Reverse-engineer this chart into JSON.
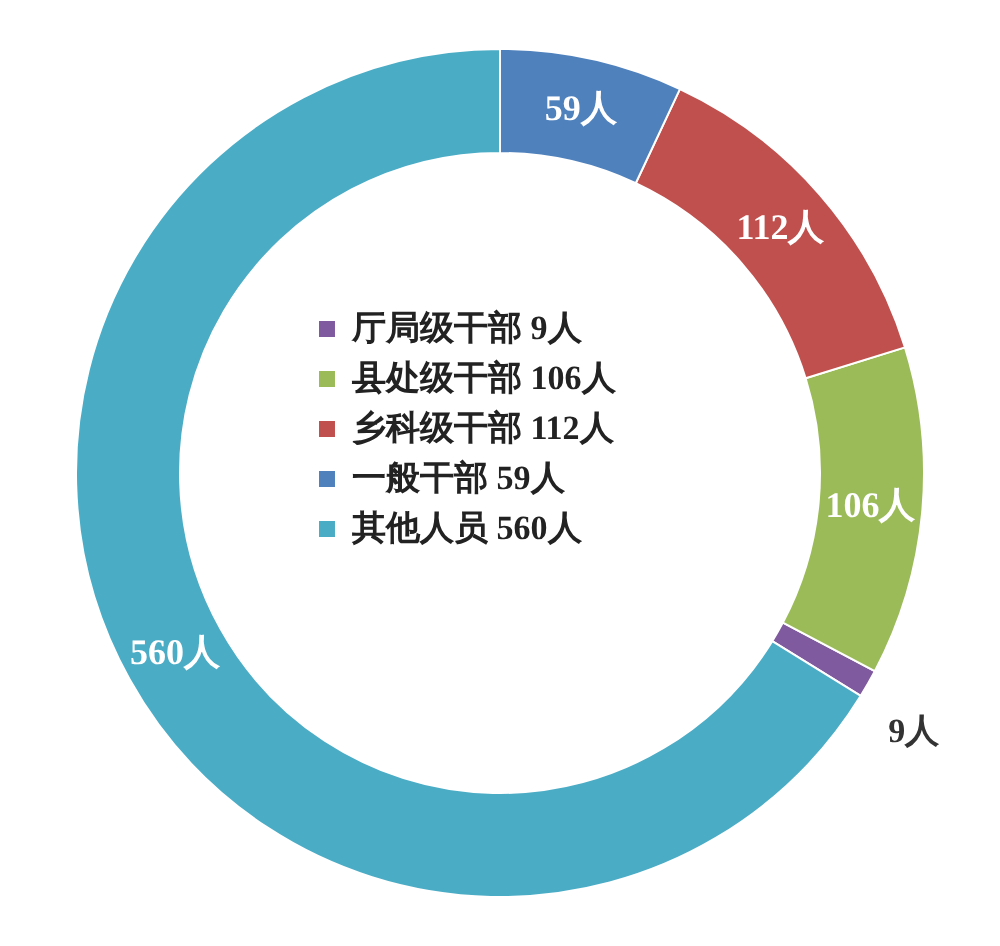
{
  "chart_data": {
    "type": "donut",
    "categories": [
      "厅局级干部",
      "县处级干部",
      "乡科级干部",
      "一般干部",
      "其他人员"
    ],
    "values": [
      9,
      106,
      112,
      59,
      560
    ],
    "colors": [
      "#7f5a9f",
      "#9bbb59",
      "#c0504d",
      "#4f81bd",
      "#4bacc6"
    ],
    "value_labels": [
      "9人",
      "106人",
      "112人",
      "59人",
      "560人"
    ],
    "legend": "center"
  }
}
